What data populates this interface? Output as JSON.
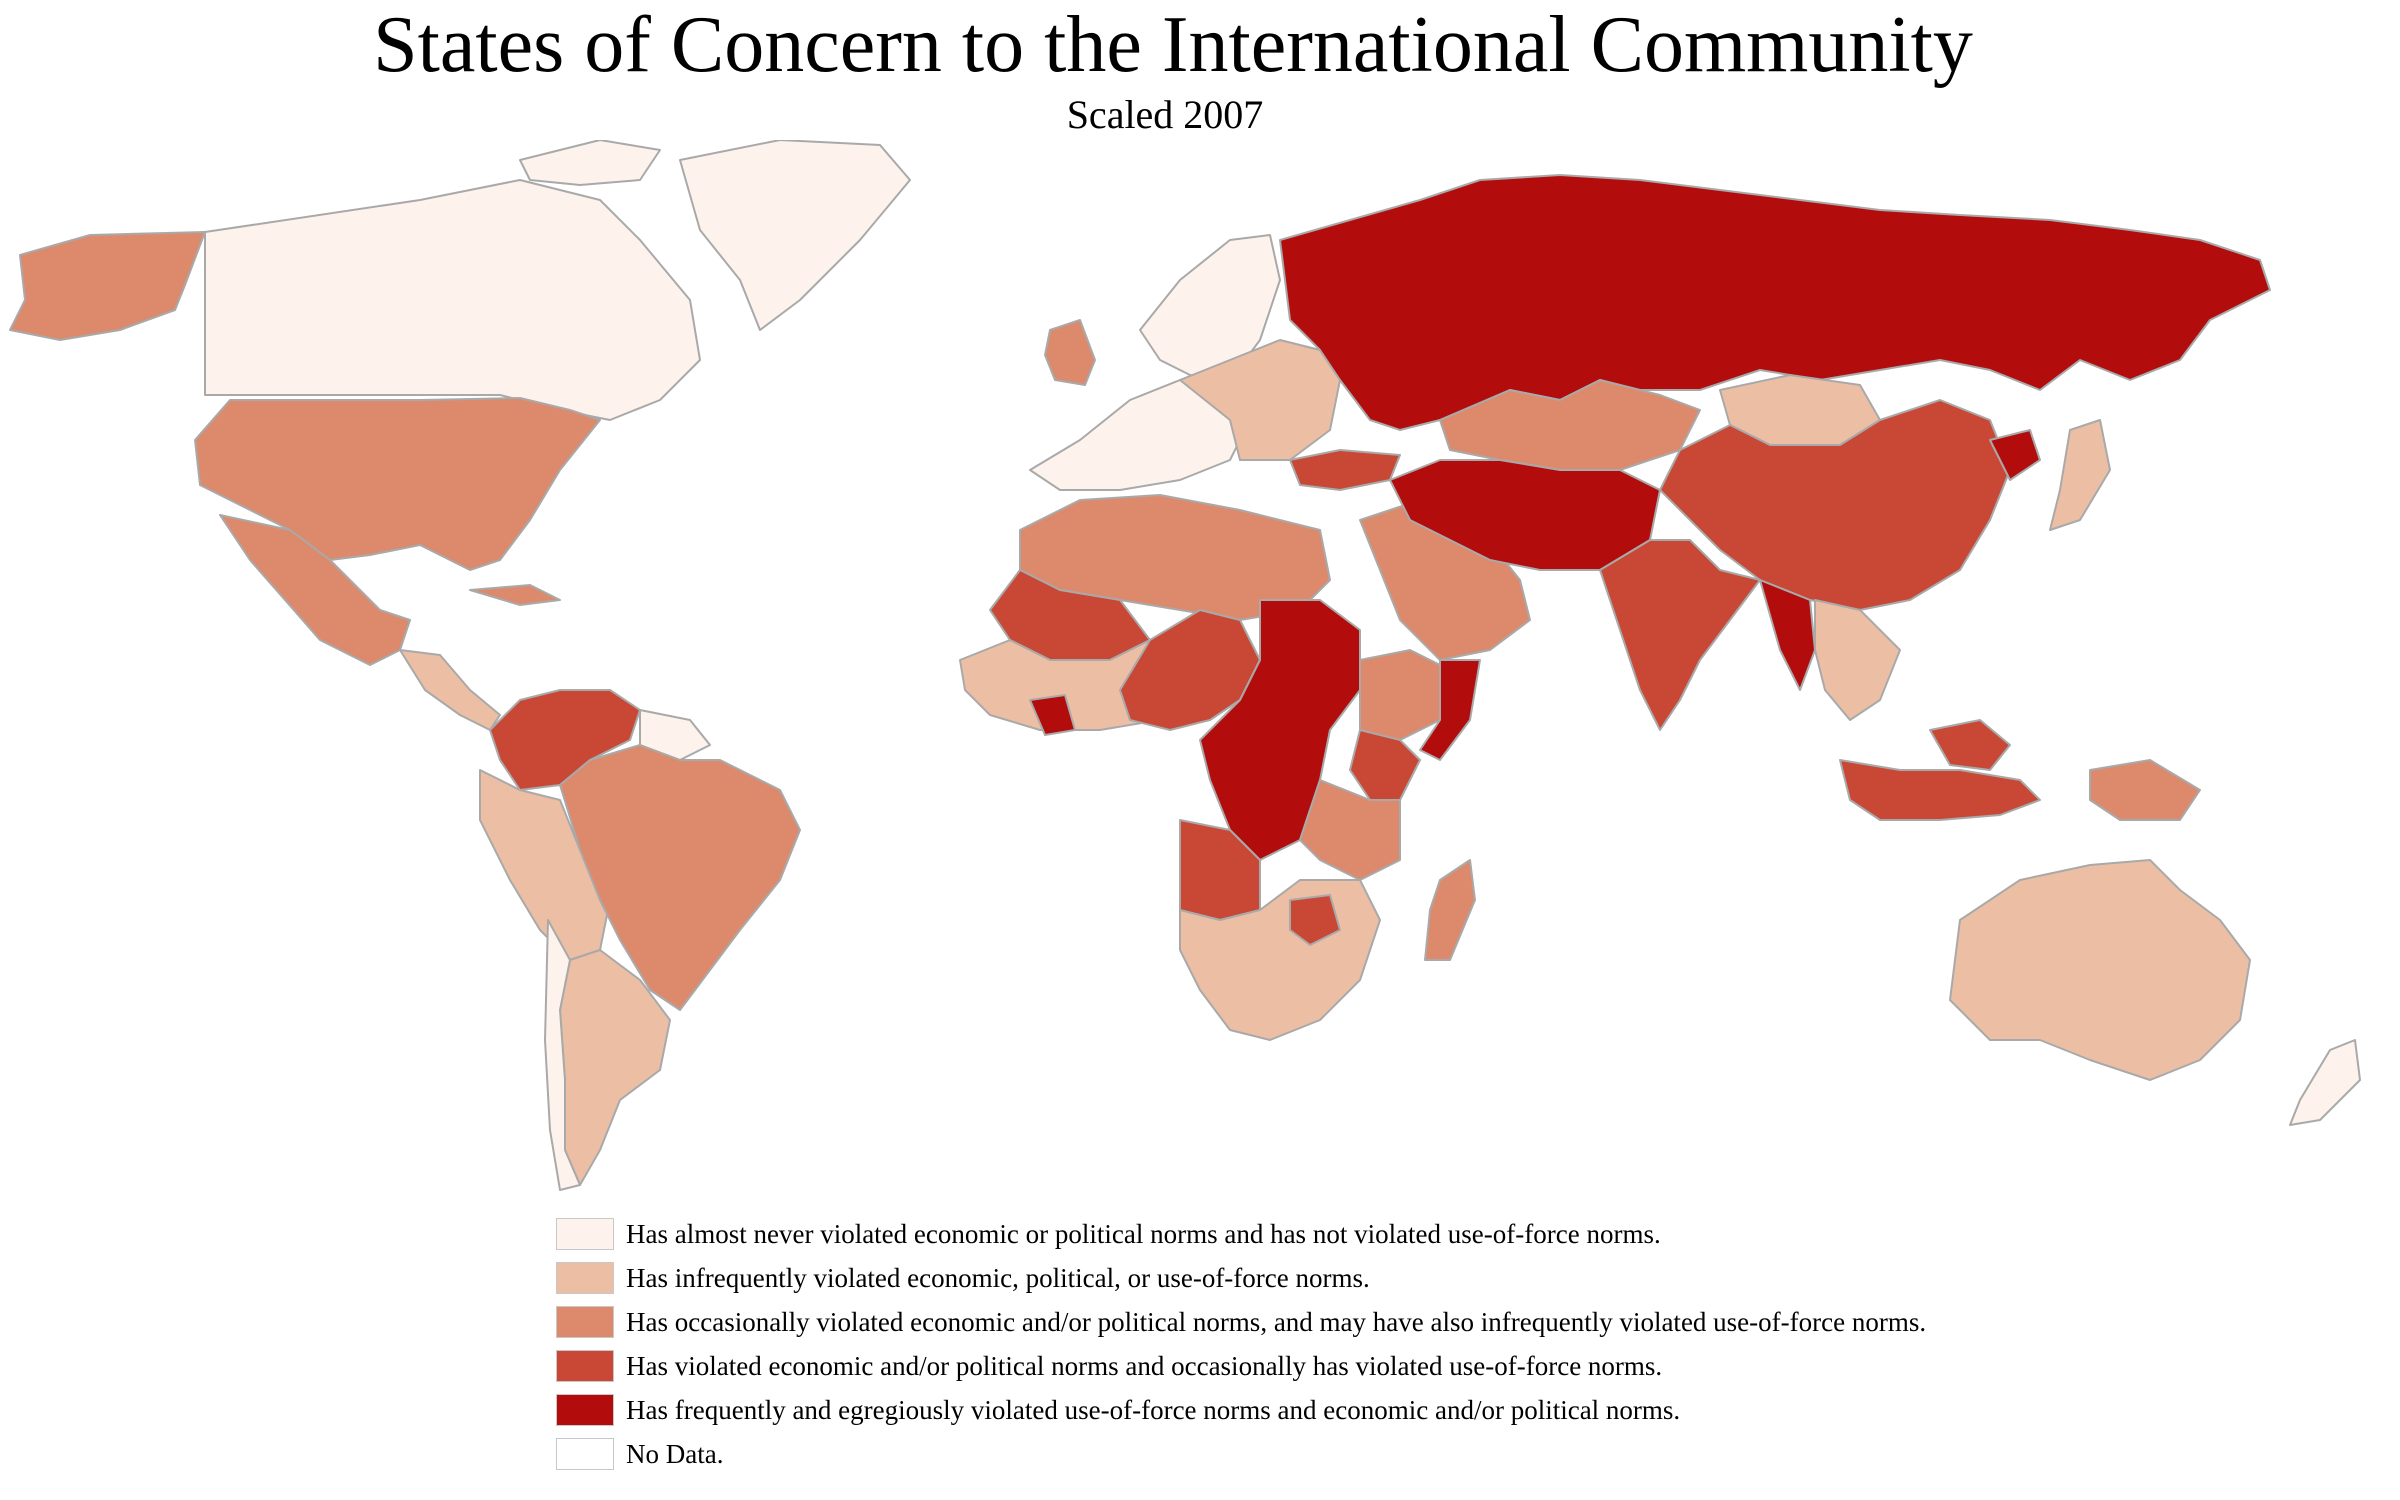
{
  "title": "States of Concern to the International Community",
  "subtitle": "Scaled 2007",
  "palette": {
    "level1": "#fdf3ec",
    "level2": "#ecbfa5",
    "level3": "#dc8a6b",
    "level4": "#c84835",
    "level5": "#b20c0c",
    "nodata": "#ffffff",
    "border": "#a9a9a9"
  },
  "legend": [
    {
      "level": "level1",
      "label": "Has almost never violated economic or political norms and has not violated use-of-force norms."
    },
    {
      "level": "level2",
      "label": "Has infrequently violated economic, political, or use-of-force norms."
    },
    {
      "level": "level3",
      "label": "Has occasionally violated economic and/or political norms, and may have also infrequently violated use-of-force norms."
    },
    {
      "level": "level4",
      "label": "Has violated economic and/or political norms and occasionally has violated use-of-force norms."
    },
    {
      "level": "level5",
      "label": "Has frequently and egregiously violated use-of-force norms and economic and/or political norms."
    },
    {
      "level": "nodata",
      "label": "No Data."
    }
  ]
}
